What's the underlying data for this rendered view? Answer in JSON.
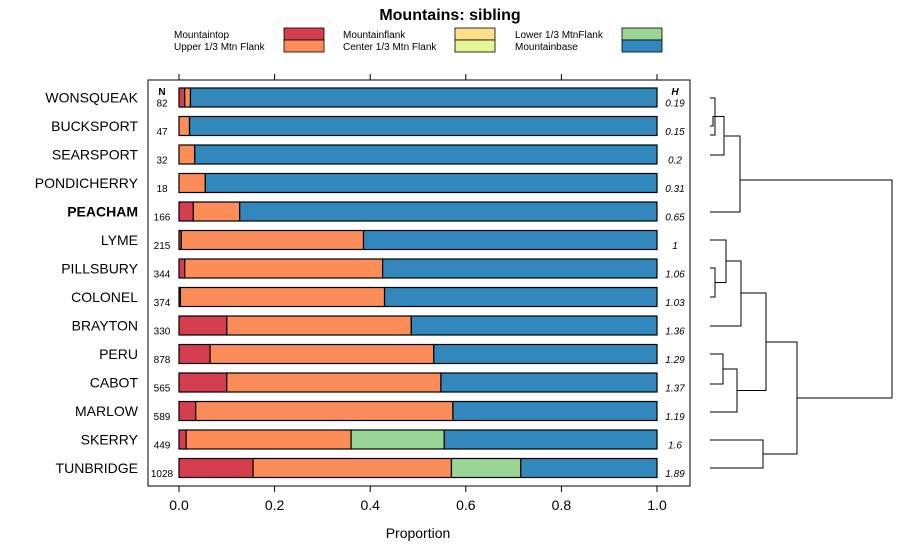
{
  "chart_data": {
    "type": "bar",
    "stacked": true,
    "orientation": "horizontal",
    "title": "Mountains: sibling",
    "xlabel": "Proportion",
    "xlim": [
      0,
      1
    ],
    "xticks": [
      "0.0",
      "0.2",
      "0.4",
      "0.6",
      "0.8",
      "1.0"
    ],
    "xtick_values": [
      0,
      0.2,
      0.4,
      0.6,
      0.8,
      1.0
    ],
    "n_header": "N",
    "h_header": "H",
    "highlighted": "PEACHAM",
    "legend": [
      {
        "name": "Mountaintop",
        "color": "#d53e4f"
      },
      {
        "name": "Mountainflank",
        "color": "#fee08b"
      },
      {
        "name": "Lower 1/3 MtnFlank",
        "color": "#99d594"
      },
      {
        "name": "Upper 1/3 Mtn Flank",
        "color": "#fc8d59"
      },
      {
        "name": "Center 1/3 Mtn Flank",
        "color": "#e6f598"
      },
      {
        "name": "Mountainbase",
        "color": "#3288bd"
      }
    ],
    "categories": [
      "WONSQUEAK",
      "BUCKSPORT",
      "SEARSPORT",
      "PONDICHERRY",
      "PEACHAM",
      "LYME",
      "PILLSBURY",
      "COLONEL",
      "BRAYTON",
      "PERU",
      "CABOT",
      "MARLOW",
      "SKERRY",
      "TUNBRIDGE"
    ],
    "n_values": [
      "82",
      "47",
      "32",
      "18",
      "166",
      "215",
      "344",
      "374",
      "330",
      "878",
      "565",
      "589",
      "449",
      "1028"
    ],
    "h_values": [
      "0.19",
      "0.15",
      "0.2",
      "0.31",
      "0.65",
      "1",
      "1.06",
      "1.03",
      "1.36",
      "1.29",
      "1.37",
      "1.19",
      "1.6",
      "1.89"
    ],
    "series": [
      {
        "name": "Mountaintop",
        "values": [
          0.012,
          0,
          0,
          0,
          0.03,
          0.005,
          0.012,
          0.003,
          0.1,
          0.065,
          0.1,
          0.035,
          0.015,
          0.155
        ]
      },
      {
        "name": "Upper 1/3 Mtn Flank",
        "values": [
          0.012,
          0.022,
          0.033,
          0.055,
          0.097,
          0.381,
          0.414,
          0.427,
          0.386,
          0.468,
          0.448,
          0.538,
          0.345,
          0.415
        ]
      },
      {
        "name": "Lower 1/3 MtnFlank",
        "values": [
          0,
          0,
          0,
          0,
          0,
          0,
          0,
          0,
          0,
          0,
          0,
          0,
          0.195,
          0.145
        ]
      },
      {
        "name": "Mountainflank",
        "values": [
          0,
          0,
          0,
          0,
          0,
          0,
          0,
          0,
          0,
          0,
          0,
          0,
          0,
          0
        ]
      },
      {
        "name": "Center 1/3 Mtn Flank",
        "values": [
          0,
          0,
          0,
          0,
          0,
          0,
          0,
          0,
          0,
          0,
          0,
          0,
          0,
          0
        ]
      },
      {
        "name": "Mountainbase",
        "values": [
          0.976,
          0.978,
          0.967,
          0.945,
          0.873,
          0.614,
          0.574,
          0.57,
          0.514,
          0.467,
          0.452,
          0.427,
          0.445,
          0.285
        ]
      }
    ]
  }
}
